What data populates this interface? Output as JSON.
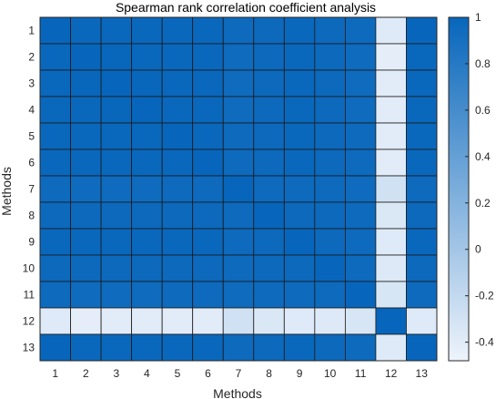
{
  "chart_data": {
    "type": "heatmap",
    "title": "Spearman rank correlation coefficient analysis",
    "xlabel": "Methods",
    "ylabel": "Methods",
    "x_categories": [
      "1",
      "2",
      "3",
      "4",
      "5",
      "6",
      "7",
      "8",
      "9",
      "10",
      "11",
      "12",
      "13"
    ],
    "y_categories": [
      "1",
      "2",
      "3",
      "4",
      "5",
      "6",
      "7",
      "8",
      "9",
      "10",
      "11",
      "12",
      "13"
    ],
    "matrix": [
      [
        1.0,
        0.98,
        0.98,
        0.98,
        0.98,
        0.98,
        0.96,
        0.97,
        0.98,
        0.97,
        0.96,
        -0.38,
        1.0
      ],
      [
        0.98,
        1.0,
        0.99,
        0.98,
        0.98,
        0.98,
        0.95,
        0.97,
        0.98,
        0.97,
        0.95,
        -0.42,
        0.98
      ],
      [
        0.98,
        0.99,
        1.0,
        0.99,
        0.98,
        0.98,
        0.95,
        0.97,
        0.98,
        0.97,
        0.95,
        -0.4,
        0.98
      ],
      [
        0.98,
        0.98,
        0.99,
        1.0,
        0.98,
        0.98,
        0.95,
        0.97,
        0.98,
        0.97,
        0.95,
        -0.4,
        0.98
      ],
      [
        0.98,
        0.98,
        0.98,
        0.98,
        1.0,
        0.98,
        0.96,
        0.97,
        0.98,
        0.97,
        0.96,
        -0.4,
        0.98
      ],
      [
        0.98,
        0.98,
        0.98,
        0.98,
        0.98,
        1.0,
        0.96,
        0.97,
        0.98,
        0.97,
        0.96,
        -0.4,
        0.98
      ],
      [
        0.96,
        0.95,
        0.95,
        0.95,
        0.96,
        0.96,
        1.0,
        0.96,
        0.96,
        0.96,
        0.95,
        -0.28,
        0.96
      ],
      [
        0.97,
        0.97,
        0.97,
        0.97,
        0.97,
        0.97,
        0.96,
        1.0,
        0.97,
        0.97,
        0.96,
        -0.35,
        0.97
      ],
      [
        0.98,
        0.98,
        0.98,
        0.98,
        0.98,
        0.98,
        0.96,
        0.97,
        1.0,
        0.97,
        0.96,
        -0.38,
        0.98
      ],
      [
        0.97,
        0.97,
        0.97,
        0.97,
        0.97,
        0.97,
        0.96,
        0.97,
        0.97,
        1.0,
        0.96,
        -0.37,
        0.97
      ],
      [
        0.96,
        0.95,
        0.95,
        0.95,
        0.96,
        0.96,
        0.95,
        0.96,
        0.96,
        0.96,
        1.0,
        -0.33,
        0.96
      ],
      [
        -0.38,
        -0.42,
        -0.4,
        -0.4,
        -0.4,
        -0.4,
        -0.28,
        -0.35,
        -0.38,
        -0.37,
        -0.33,
        1.0,
        -0.38
      ],
      [
        1.0,
        0.98,
        0.98,
        0.98,
        0.98,
        0.98,
        0.96,
        0.97,
        0.98,
        0.97,
        0.96,
        -0.38,
        1.0
      ]
    ],
    "colorbar": {
      "min": -0.48,
      "max": 1.0,
      "ticks": [
        1,
        0.8,
        0.6,
        0.4,
        0.2,
        0,
        -0.2,
        -0.4
      ],
      "tick_labels": [
        "1",
        "0.8",
        "0.6",
        "0.4",
        "0.2",
        "0",
        "-0.2",
        "-0.4"
      ],
      "color_low": "#eef4fb",
      "color_high": "#0766bb"
    },
    "grid": true,
    "cell_border_color": "#1a1a1a"
  }
}
